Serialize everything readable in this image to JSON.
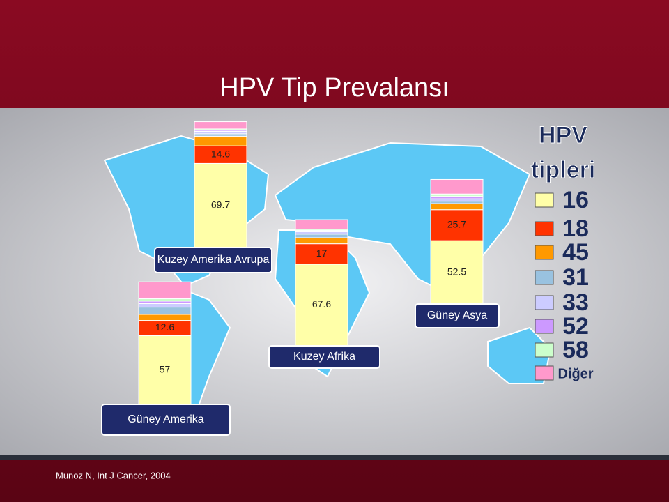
{
  "chart_data": {
    "type": "stacked-bar",
    "title": "HPV Tip Prevalansı",
    "legend_title": [
      "HPV",
      "tipleri"
    ],
    "source": "Munoz N, Int J Cancer, 2004",
    "categories": [
      "Kuzey Amerika Avrupa",
      "Kuzey Afrika",
      "Güney Asya",
      "Güney Amerika"
    ],
    "series": [
      {
        "name": "16",
        "color": "#ffffa8",
        "values": [
          69.7,
          67.6,
          52.5,
          57
        ],
        "show_labels": true
      },
      {
        "name": "18",
        "color": "#ff3300",
        "values": [
          14.6,
          17,
          25.7,
          12.6
        ],
        "show_labels": true
      },
      {
        "name": "45",
        "color": "#ff9900",
        "values": [
          8,
          5,
          5,
          5
        ]
      },
      {
        "name": "31",
        "color": "#99c2e0",
        "values": [
          2,
          3,
          2,
          6
        ]
      },
      {
        "name": "33",
        "color": "#ccccff",
        "values": [
          2,
          2,
          2,
          3
        ]
      },
      {
        "name": "52",
        "color": "#cc99ff",
        "values": [
          1,
          1,
          2,
          2
        ]
      },
      {
        "name": "58",
        "color": "#ccffcc",
        "values": [
          1,
          1,
          2,
          2
        ]
      },
      {
        "name": "Diğer",
        "color": "#ff99cc",
        "values": [
          6,
          8,
          12,
          14
        ]
      }
    ]
  }
}
